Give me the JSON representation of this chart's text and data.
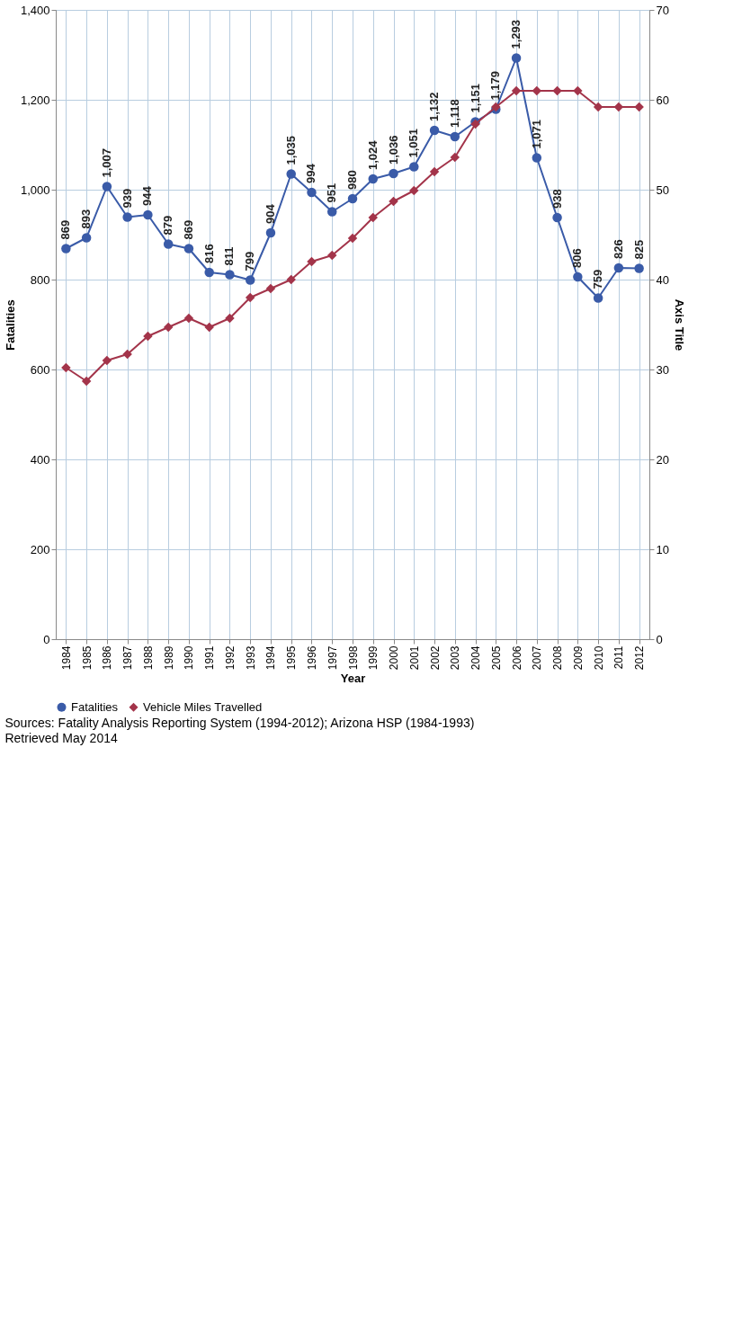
{
  "chart_data": {
    "type": "line",
    "xlabel": "Year",
    "ylabel": "Fatalities",
    "y2label": "Axis Title",
    "categories": [
      "1984",
      "1985",
      "1986",
      "1987",
      "1988",
      "1989",
      "1990",
      "1991",
      "1992",
      "1993",
      "1994",
      "1995",
      "1996",
      "1997",
      "1998",
      "1999",
      "2000",
      "2001",
      "2002",
      "2003",
      "2004",
      "2005",
      "2006",
      "2007",
      "2008",
      "2009",
      "2010",
      "2011",
      "2012"
    ],
    "series": [
      {
        "name": "Fatalities",
        "color": "#3a5ba8",
        "marker": "circle",
        "value_labels": [
          "869",
          "893",
          "1,007",
          "939",
          "944",
          "879",
          "869",
          "816",
          "811",
          "799",
          "904",
          "1,035",
          "994",
          "951",
          "980",
          "1,024",
          "1,036",
          "1,051",
          "1,132",
          "1,118",
          "1,151",
          "1,179",
          "1,293",
          "1,071",
          "938",
          "806",
          "759",
          "826",
          "825"
        ],
        "values": [
          869,
          893,
          1007,
          939,
          944,
          879,
          869,
          816,
          811,
          799,
          904,
          1035,
          994,
          951,
          980,
          1024,
          1036,
          1051,
          1132,
          1118,
          1151,
          1179,
          1293,
          1071,
          938,
          806,
          759,
          826,
          825
        ]
      },
      {
        "name": "Vehicle Miles Travelled",
        "color": "#a3344a",
        "marker": "diamond",
        "axis": "y2",
        "values": [
          30.2,
          28.7,
          31,
          31.7,
          33.7,
          34.7,
          35.7,
          34.7,
          35.7,
          38,
          39,
          40,
          42,
          42.7,
          44.6,
          46.9,
          48.7,
          49.9,
          52,
          53.6,
          57.3,
          59.2,
          61,
          61,
          61,
          61,
          59.2,
          59.2,
          59.2
        ]
      }
    ],
    "ylim": [
      0,
      1400
    ],
    "yticks": [
      0,
      200,
      400,
      600,
      800,
      {
        "value": 1000,
        "label": "1,000"
      },
      {
        "value": 1200,
        "label": "1,200"
      },
      {
        "value": 1400,
        "label": "1,400"
      }
    ],
    "y2lim": [
      0,
      70
    ],
    "y2ticks": [
      0,
      10,
      20,
      30,
      40,
      50,
      60,
      70
    ],
    "grid": true,
    "legend": "bottom",
    "annotations": [
      "Sources: Fatality Analysis Reporting System (1994-2012);  Arizona HSP (1984-1993)",
      "Retrieved May 2014"
    ]
  }
}
